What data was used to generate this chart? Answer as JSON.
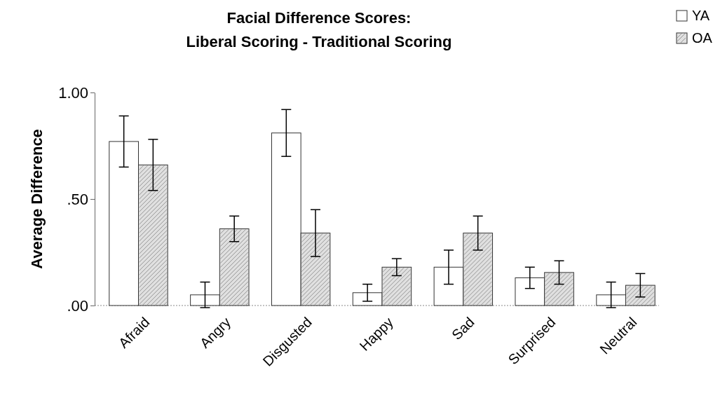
{
  "chart_data": {
    "type": "bar",
    "title": "Facial Difference Scores:\nLiberal Scoring - Traditional Scoring",
    "ylabel": "Average Difference",
    "categories": [
      "Afraid",
      "Angry",
      "Disgusted",
      "Happy",
      "Sad",
      "Surprised",
      "Neutral"
    ],
    "series": [
      {
        "name": "YA",
        "color": "#ffffff",
        "values": [
          0.77,
          0.05,
          0.81,
          0.06,
          0.18,
          0.13,
          0.05
        ],
        "errors": [
          0.12,
          0.06,
          0.11,
          0.04,
          0.08,
          0.05,
          0.06
        ]
      },
      {
        "name": "OA",
        "color": "#e0e0e0",
        "values": [
          0.66,
          0.36,
          0.34,
          0.18,
          0.34,
          0.155,
          0.095
        ],
        "errors": [
          0.12,
          0.06,
          0.11,
          0.04,
          0.08,
          0.055,
          0.055
        ]
      }
    ],
    "ylim": [
      0,
      1
    ],
    "yticks": [
      {
        "value": 0,
        "label": ".00"
      },
      {
        "value": 0.5,
        "label": ".50"
      },
      {
        "value": 1,
        "label": "1.00"
      }
    ],
    "grid": false,
    "legend": "top right"
  }
}
